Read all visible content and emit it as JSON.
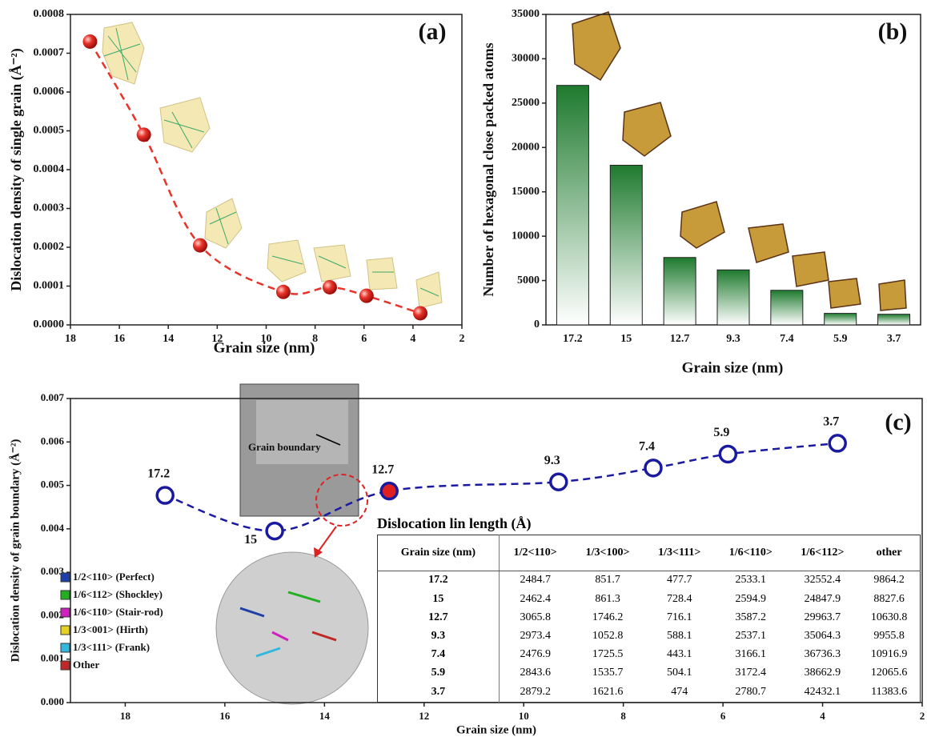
{
  "chart_data": [
    {
      "type": "line",
      "title": "(a)",
      "x_label": "Grain size (nm)",
      "y_label": "Dislocation density of single grain (Å⁻²)",
      "x": [
        17.2,
        15,
        12.7,
        9.3,
        7.4,
        5.9,
        3.7
      ],
      "values": [
        0.00073,
        0.00049,
        0.000205,
        8.5e-05,
        9.7e-05,
        7.5e-05,
        3e-05
      ],
      "color": "#e8332a",
      "line_style": "dashed",
      "xlim": [
        18,
        2
      ],
      "xticks": [
        18,
        16,
        14,
        12,
        10,
        8,
        6,
        4,
        2
      ],
      "ylim": [
        0,
        0.0008
      ],
      "yticks": [
        {
          "value": 0,
          "label": "0.0000"
        },
        {
          "value": 0.0001,
          "label": "0.0001"
        },
        {
          "value": 0.0002,
          "label": "0.0002"
        },
        {
          "value": 0.0003,
          "label": "0.0003"
        },
        {
          "value": 0.0004,
          "label": "0.0004"
        },
        {
          "value": 0.0005,
          "label": "0.0005"
        },
        {
          "value": 0.0006,
          "label": "0.0006"
        },
        {
          "value": 0.0007,
          "label": "0.0007"
        },
        {
          "value": 0.0008,
          "label": "0.0008"
        }
      ]
    },
    {
      "type": "bar",
      "title": "(b)",
      "x_label": "Grain size (nm)",
      "y_label": "Number of hexagonal close packed atoms",
      "categories": [
        "17.2",
        "15",
        "12.7",
        "9.3",
        "7.4",
        "5.9",
        "3.7"
      ],
      "values": [
        27000,
        18000,
        7600,
        6200,
        3900,
        1300,
        1200
      ],
      "color": "#1e7a2e",
      "ylim": [
        0,
        35000
      ],
      "yticks": [
        0,
        5000,
        10000,
        15000,
        20000,
        25000,
        30000,
        35000
      ]
    },
    {
      "type": "line",
      "title": "(c)",
      "x_label": "Grain size (nm)",
      "y_label": "Dislocation density of grain boundary (Å⁻²)",
      "x": [
        17.2,
        15,
        12.7,
        9.3,
        7.4,
        5.9,
        3.7
      ],
      "values": [
        0.00477,
        0.00395,
        0.00487,
        0.00508,
        0.0054,
        0.00572,
        0.00597
      ],
      "color": "#1a1aa0",
      "line_style": "dashed",
      "highlight_index": 2,
      "highlight_color": "#e02020",
      "xlim": [
        19.1,
        2
      ],
      "xticks": [
        18,
        16,
        14,
        12,
        10,
        8,
        6,
        4,
        2
      ],
      "ylim": [
        0,
        0.007
      ],
      "yticks": [
        {
          "value": 0,
          "label": "0.000"
        },
        {
          "value": 0.001,
          "label": "0.001"
        },
        {
          "value": 0.002,
          "label": "0.002"
        },
        {
          "value": 0.003,
          "label": "0.003"
        },
        {
          "value": 0.004,
          "label": "0.004"
        },
        {
          "value": 0.005,
          "label": "0.005"
        },
        {
          "value": 0.006,
          "label": "0.006"
        },
        {
          "value": 0.007,
          "label": "0.007"
        }
      ],
      "annotation": "Grain boundary",
      "inset_legend": [
        {
          "name": "1/2<110> (Perfect)",
          "color": "#1f3fa8"
        },
        {
          "name": "1/6<112> (Shockley)",
          "color": "#22b022"
        },
        {
          "name": "1/6<110> (Stair-rod)",
          "color": "#d020c0"
        },
        {
          "name": "1/3<001> (Hirth)",
          "color": "#e8d020"
        },
        {
          "name": "1/3<111> (Frank)",
          "color": "#30b8e0"
        },
        {
          "name": "Other",
          "color": "#c02828"
        }
      ],
      "table": {
        "title": "Dislocation lin length (Å)",
        "columns": [
          "Grain size (nm)",
          "1/2<110>",
          "1/3<100>",
          "1/3<111>",
          "1/6<110>",
          "1/6<112>",
          "other"
        ],
        "rows": [
          [
            17.2,
            2484.7,
            851.7,
            477.7,
            2533.1,
            32552.4,
            9864.2
          ],
          [
            15,
            2462.4,
            861.3,
            728.4,
            2594.9,
            24847.9,
            8827.6
          ],
          [
            12.7,
            3065.8,
            1746.2,
            716.1,
            3587.2,
            29963.7,
            10630.8
          ],
          [
            9.3,
            2973.4,
            1052.8,
            588.1,
            2537.1,
            35064.3,
            9955.8
          ],
          [
            7.4,
            2476.9,
            1725.5,
            443.1,
            3166.1,
            36736.3,
            10916.9
          ],
          [
            5.9,
            2843.6,
            1535.7,
            504.1,
            3172.4,
            38662.9,
            12065.6
          ],
          [
            3.7,
            2879.2,
            1621.6,
            474,
            2780.7,
            42432.1,
            11383.6
          ]
        ]
      }
    }
  ]
}
